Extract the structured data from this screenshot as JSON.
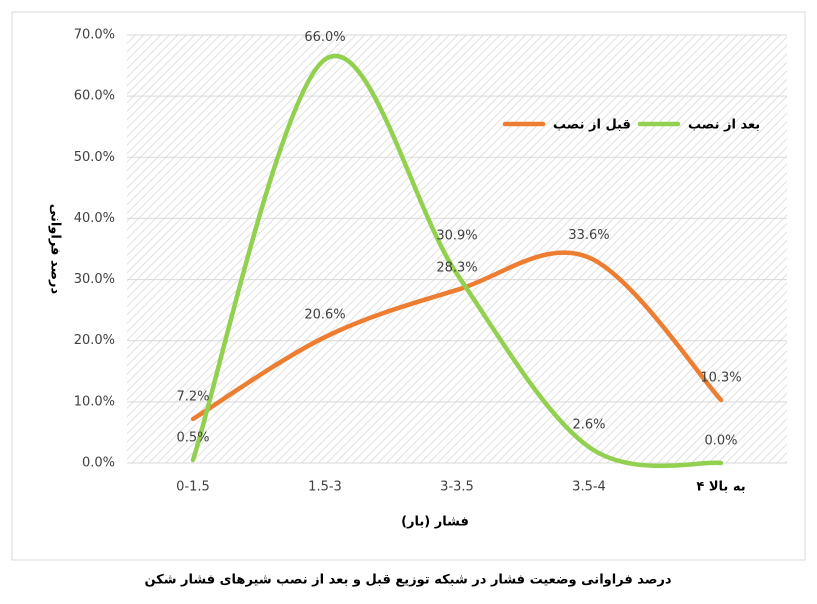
{
  "chart_data": {
    "type": "line",
    "y_label": "درصد فراوانی",
    "x_label": "فشار (بار)",
    "caption": "درصد فراوانی وضعیت فشار در شبکه توزیع قبل و بعد از نصب شیرهای فشار شکن",
    "categories": [
      "0-1.5",
      "1.5-3",
      "3-3.5",
      "3.5-4",
      "۴ به بالا"
    ],
    "series": [
      {
        "name": "قبل از نصب",
        "color": "#ed7d31",
        "values": [
          7.2,
          20.6,
          28.3,
          33.6,
          10.3
        ],
        "value_labels": [
          "7.2%",
          "20.6%",
          "28.3%",
          "33.6%",
          "10.3%"
        ]
      },
      {
        "name": "بعد از نصب",
        "color": "#92d050",
        "values": [
          0.5,
          66.0,
          30.9,
          2.6,
          0.0
        ],
        "value_labels": [
          "0.5%",
          "66.0%",
          "30.9%",
          "2.6%",
          "0.0%"
        ]
      }
    ],
    "ylim": [
      0,
      70
    ],
    "yticks": [
      {
        "value": 0,
        "label": "0.0%"
      },
      {
        "value": 10,
        "label": "10.0%"
      },
      {
        "value": 20,
        "label": "20.0%"
      },
      {
        "value": 30,
        "label": "30.0%"
      },
      {
        "value": 40,
        "label": "40.0%"
      },
      {
        "value": 50,
        "label": "50.0%"
      },
      {
        "value": 60,
        "label": "60.0%"
      },
      {
        "value": 70,
        "label": "70.0%"
      }
    ],
    "grid": true,
    "smooth": true
  }
}
